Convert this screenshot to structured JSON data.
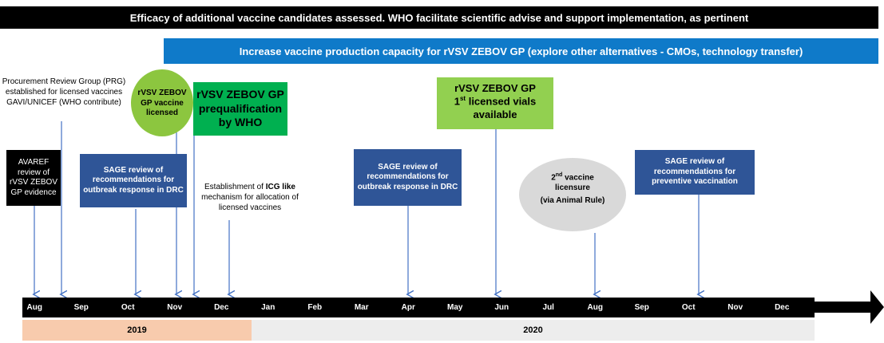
{
  "banners": [
    "Efficacy of additional  vaccine candidates assessed. WHO facilitate scientific advise and support implementation, as pertinent",
    "Increase vaccine production capacity for rVSV ZEBOV GP (explore other alternatives - CMOs, technology transfer)"
  ],
  "events": {
    "prg": "Procurement Review Group (PRG) established for licensed vaccines GAVI/UNICEF (WHO contribute)",
    "avaref": "AVAREF review of rVSV ZEBOV GP evidence",
    "sage1": "SAGE review of recommendations for outbreak response in DRC",
    "licensed": "rVSV ZEBOV GP vaccine licensed",
    "prequal": "rVSV ZEBOV GP prequalification by WHO",
    "icg": {
      "before": "Establishment of ",
      "bold": "ICG like",
      "after": " mechanism for allocation of licensed vaccines"
    },
    "sage2": "SAGE review of recommendations  for outbreak response in DRC",
    "vials": {
      "line1": "rVSV ZEBOV GP",
      "num": "1",
      "sup": "st",
      "rest": " licensed vials available"
    },
    "second": {
      "num": "2",
      "sup": "nd",
      "rest": " vaccine licensure",
      "note": "(via Animal Rule)"
    },
    "sage3": "SAGE review of recommendations for preventive vaccination"
  },
  "months": [
    "Aug",
    "Sep",
    "Oct",
    "Nov",
    "Dec",
    "Jan",
    "Feb",
    "Mar",
    "Apr",
    "May",
    "Jun",
    "Jul",
    "Aug",
    "Sep",
    "Oct",
    "Nov",
    "Dec"
  ],
  "years": [
    "2019",
    "2020"
  ]
}
